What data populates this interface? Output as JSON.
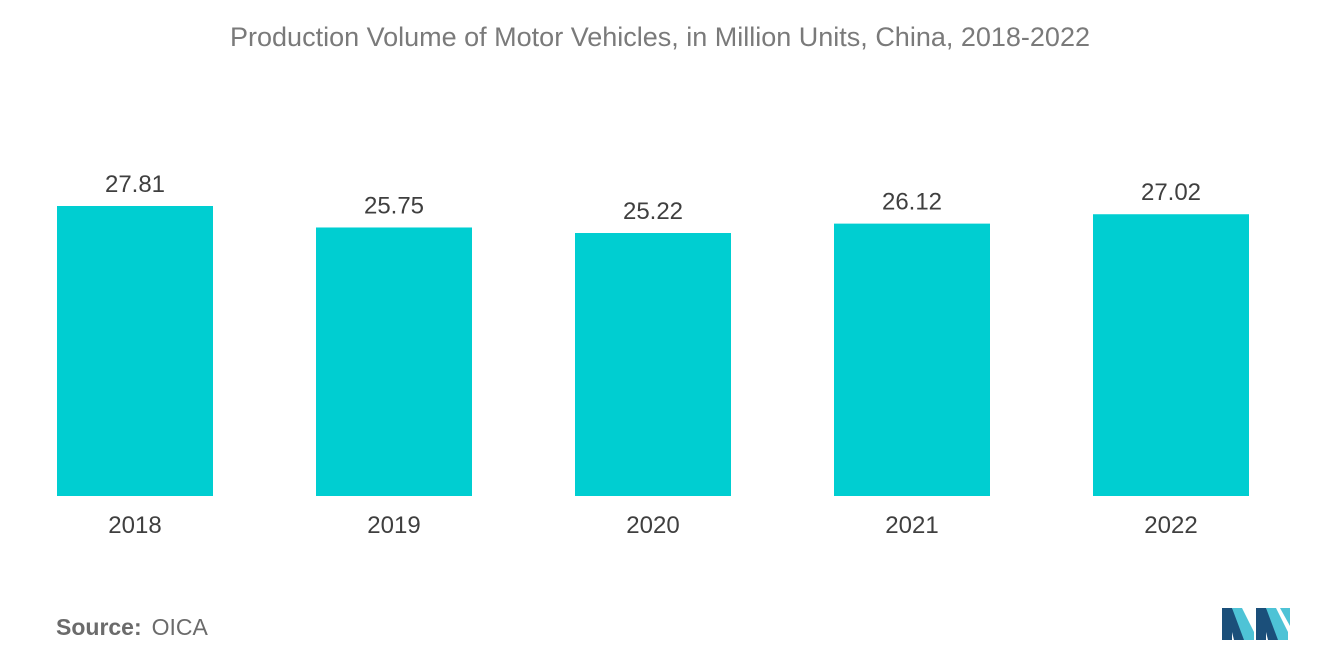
{
  "colors": {
    "bar": "#00CED1",
    "text": "#3f3f3f",
    "title": "#7a7a7a",
    "logo_dark": "#1b4f7a",
    "logo_light": "#4ec3d6"
  },
  "source": {
    "label": "Source:",
    "value": "OICA"
  },
  "logo": {
    "icon": "mordor-intelligence-logo-icon"
  },
  "chart_data": {
    "type": "bar",
    "title": "Production Volume of Motor Vehicles, in Million Units, China, 2018-2022",
    "categories": [
      "2018",
      "2019",
      "2020",
      "2021",
      "2022"
    ],
    "values": [
      27.81,
      25.75,
      25.22,
      26.12,
      27.02
    ],
    "value_labels": [
      "27.81",
      "25.75",
      "25.22",
      "26.12",
      "27.02"
    ],
    "xlabel": "",
    "ylabel": "",
    "ylim": [
      0,
      27.81
    ],
    "grid": false,
    "legend": "none"
  }
}
